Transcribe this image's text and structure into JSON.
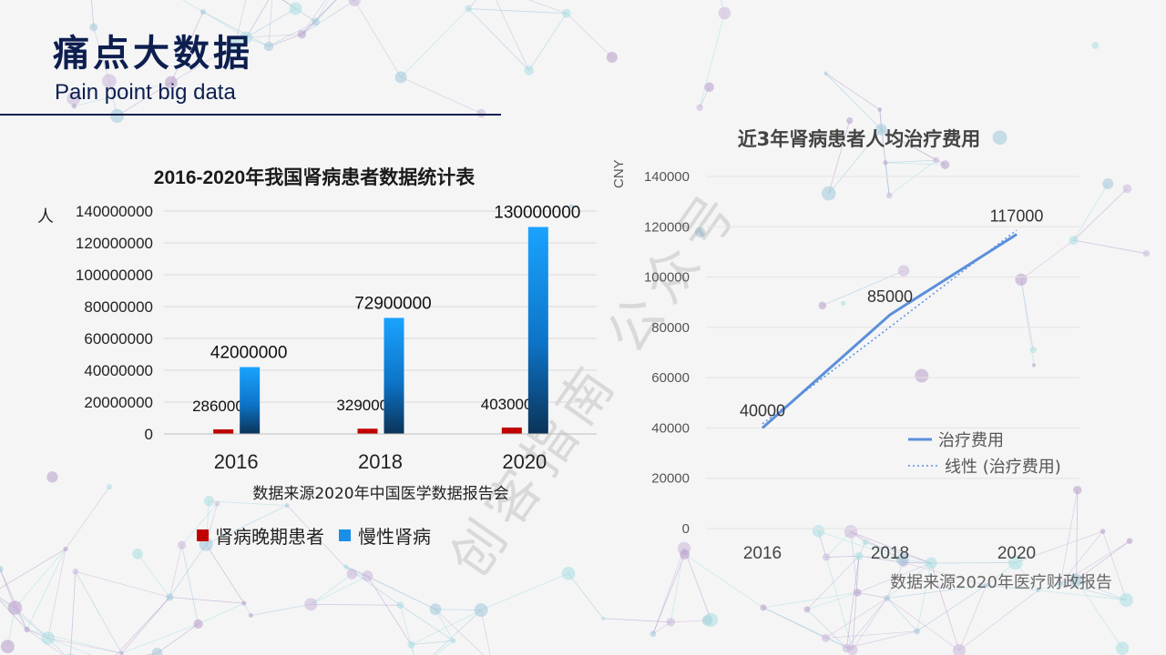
{
  "header": {
    "title": "痛点大数据",
    "subtitle": "Pain point big data"
  },
  "watermark": "创客指南 公众号",
  "colors": {
    "navy": "#0d1f4f",
    "red": "#c00000",
    "blue": "#1a8fe8",
    "line": "#5b8fdb"
  },
  "chart_data": [
    {
      "type": "bar",
      "title": "2016-2020年我国肾病患者数据统计表",
      "ylabel": "人",
      "xlabel": "数据来源2020年中国医学数据报告会",
      "categories": [
        "2016",
        "2018",
        "2020"
      ],
      "ylim": [
        0,
        140000000
      ],
      "yticks": [
        0,
        20000000,
        40000000,
        60000000,
        80000000,
        100000000,
        120000000,
        140000000
      ],
      "series": [
        {
          "name": "肾病晚期患者",
          "color": "#c00000",
          "values": [
            2860000,
            3290000,
            4030000
          ]
        },
        {
          "name": "慢性肾病",
          "color": "#1a8fe8",
          "values": [
            42000000,
            72900000,
            130000000
          ]
        }
      ],
      "legend": "bottom",
      "grid": true
    },
    {
      "type": "line",
      "title": "近3年肾病患者人均治疗费用",
      "ylabel": "CNY",
      "xlabel": "数据来源2020年医疗财政报告",
      "categories": [
        "2016",
        "2018",
        "2020"
      ],
      "ylim": [
        0,
        140000
      ],
      "yticks": [
        0,
        20000,
        40000,
        60000,
        80000,
        100000,
        120000,
        140000
      ],
      "series": [
        {
          "name": "治疗费用",
          "color": "#5b8fdb",
          "values": [
            40000,
            85000,
            117000
          ]
        }
      ],
      "trendline": {
        "name": "线性 (治疗费用)",
        "color": "#5b8fdb",
        "values": [
          41667,
          80167,
          118667
        ]
      },
      "legend": "right",
      "grid": true
    }
  ]
}
